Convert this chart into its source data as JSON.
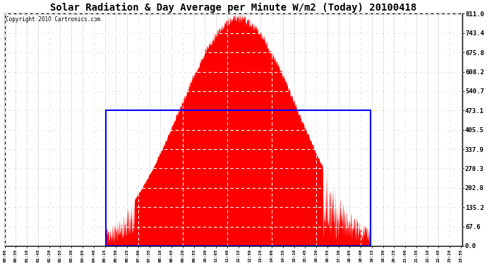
{
  "title": "Solar Radiation & Day Average per Minute W/m2 (Today) 20100418",
  "copyright": "Copyright 2010 Cartronics.com",
  "y_ticks": [
    0.0,
    67.6,
    135.2,
    202.8,
    270.3,
    337.9,
    405.5,
    473.1,
    540.7,
    608.2,
    675.8,
    743.4,
    811.0
  ],
  "ymax": 811.0,
  "ymin": 0.0,
  "day_average": 473.1,
  "sunrise_minute": 318,
  "sunset_minute": 1151,
  "total_minutes": 1440,
  "tick_interval": 35,
  "background_color": "#ffffff",
  "fill_color": "#ff0000",
  "blue_rect_color": "#0000ff",
  "grid_color": "#808080",
  "white_dash_color": "#ffffff",
  "title_fontsize": 10,
  "copyright_fontsize": 5.5,
  "ytick_fontsize": 6.5,
  "xtick_fontsize": 4.5,
  "figwidth": 6.9,
  "figheight": 3.75,
  "dpi": 100
}
